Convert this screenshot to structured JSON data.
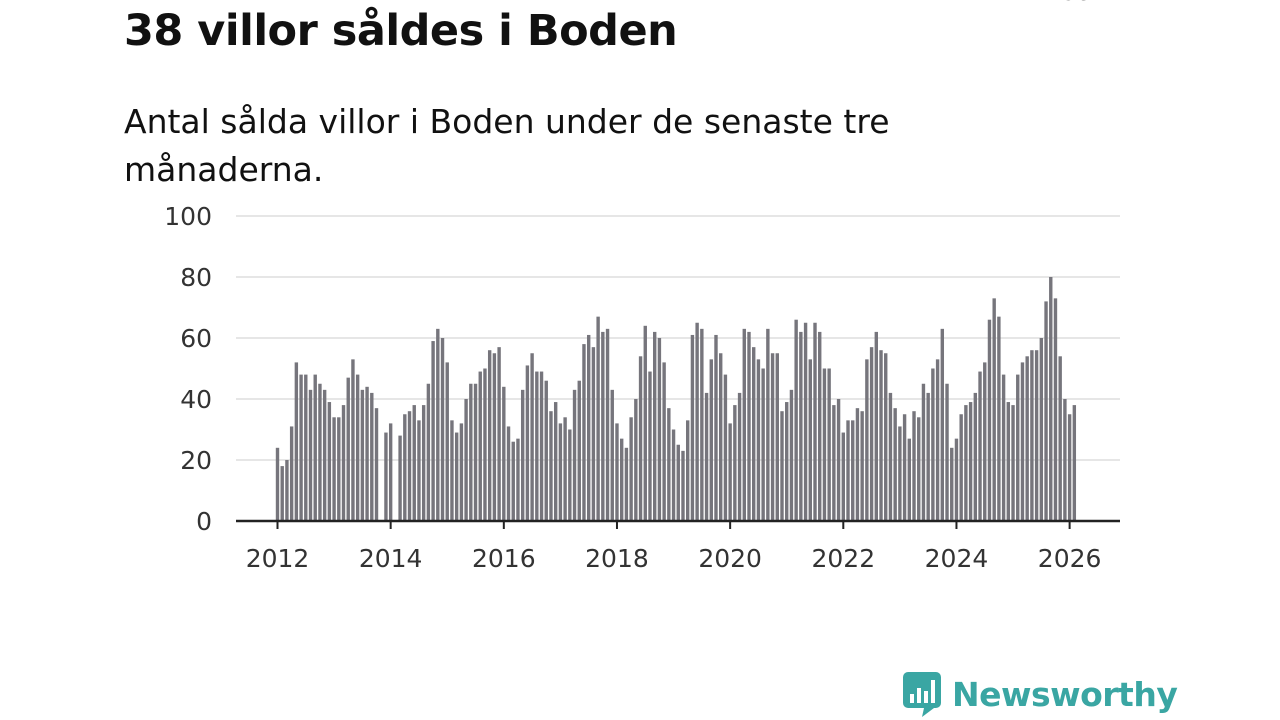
{
  "title": "38 villor såldes i Boden",
  "subtitle": "Antal sålda villor i Boden under de senaste tre månaderna.",
  "logo_text": "Newsworthy",
  "colors": {
    "bar": "#76757c",
    "highlight": "#1a9c9a",
    "brand": "#3aa6a3",
    "grid": "#dddddd",
    "axis": "#222222"
  },
  "chart_data": {
    "type": "bar",
    "title": "38 villor såldes i Boden",
    "subtitle": "Antal sålda villor i Boden under de senaste tre månaderna.",
    "ylim": [
      0,
      100
    ],
    "yticks": [
      0,
      20,
      40,
      60,
      80,
      100
    ],
    "xtick_labels": [
      "2012",
      "2014",
      "2016",
      "2018",
      "2020",
      "2022",
      "2024",
      "2026"
    ],
    "grid": true,
    "x_start": "2012-01",
    "interval": "month",
    "values": [
      24,
      18,
      20,
      31,
      52,
      48,
      48,
      43,
      48,
      45,
      43,
      39,
      34,
      34,
      38,
      47,
      53,
      48,
      43,
      44,
      42,
      37,
      0,
      29,
      32,
      0,
      28,
      35,
      36,
      38,
      33,
      38,
      45,
      59,
      63,
      60,
      52,
      33,
      29,
      32,
      40,
      45,
      45,
      49,
      50,
      56,
      55,
      57,
      44,
      31,
      26,
      27,
      43,
      51,
      55,
      49,
      49,
      46,
      36,
      39,
      32,
      34,
      30,
      43,
      46,
      58,
      61,
      57,
      67,
      62,
      63,
      43,
      32,
      27,
      24,
      34,
      40,
      54,
      64,
      49,
      62,
      60,
      52,
      37,
      30,
      25,
      23,
      33,
      61,
      65,
      63,
      42,
      53,
      61,
      55,
      48,
      32,
      38,
      42,
      63,
      62,
      57,
      53,
      50,
      63,
      55,
      55,
      36,
      39,
      43,
      66,
      62,
      65,
      53,
      65,
      62,
      50,
      50,
      38,
      40,
      29,
      33,
      33,
      37,
      36,
      53,
      57,
      62,
      56,
      55,
      42,
      37,
      31,
      35,
      27,
      36,
      34,
      45,
      42,
      50,
      53,
      63,
      45,
      24,
      27,
      35,
      38,
      39,
      42,
      49,
      52,
      66,
      73,
      67,
      48,
      39,
      38,
      48,
      52,
      54,
      56,
      56,
      60,
      72,
      80,
      73,
      54,
      40,
      35,
      38
    ],
    "highlight_index": 170,
    "highlight_label": "38"
  }
}
